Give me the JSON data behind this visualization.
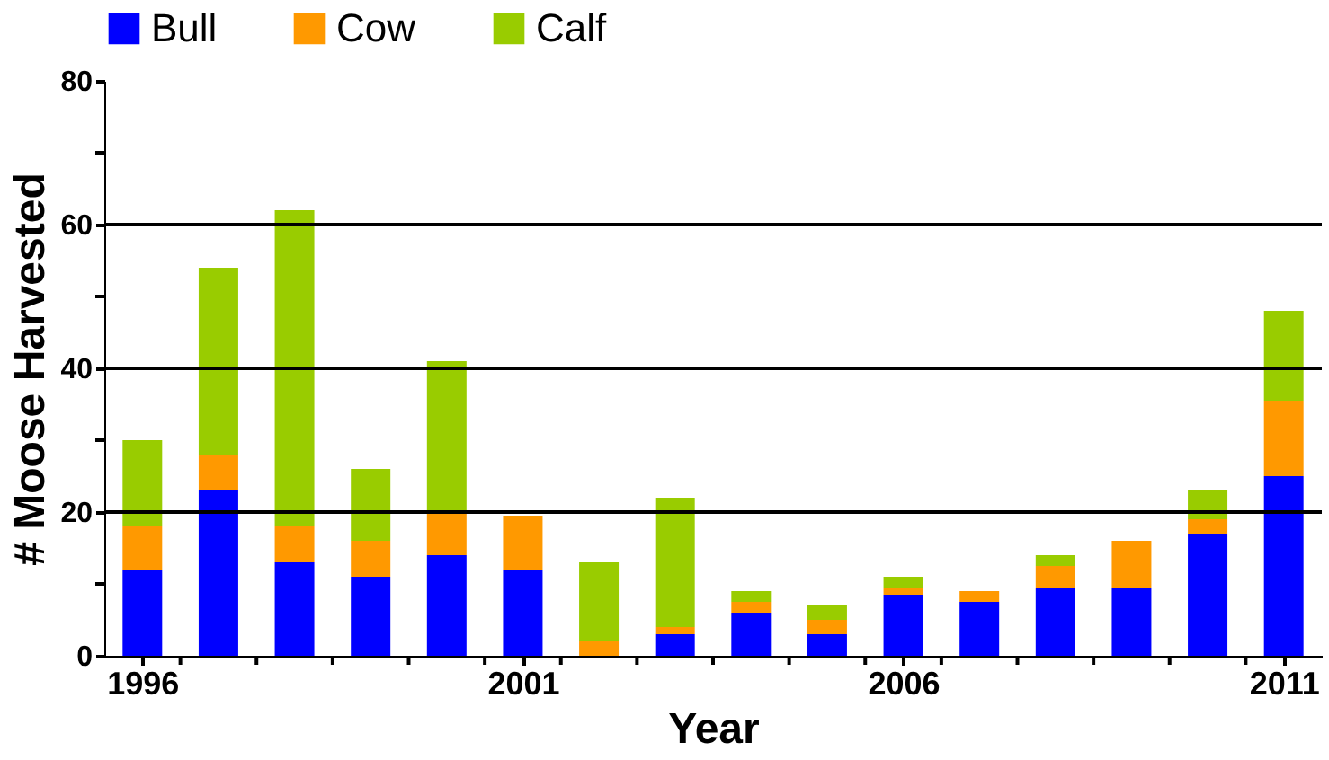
{
  "chart_data": {
    "type": "bar",
    "stacked": true,
    "xlabel": "Year",
    "ylabel": "# Moose Harvested",
    "x": [
      1996,
      1997,
      1998,
      1999,
      2000,
      2001,
      2002,
      2003,
      2004,
      2005,
      2006,
      2007,
      2008,
      2009,
      2010,
      2011
    ],
    "series": [
      {
        "name": "Bull",
        "color": "#0000ff",
        "values": [
          12,
          23,
          13,
          11,
          14,
          12,
          0,
          3,
          6,
          3,
          8.5,
          7.5,
          9.5,
          9.5,
          17,
          25
        ]
      },
      {
        "name": "Cow",
        "color": "#ff9900",
        "values": [
          6,
          5,
          5,
          5,
          6,
          7.5,
          2,
          1,
          1.5,
          2,
          1,
          1.5,
          3,
          6.5,
          2,
          10.5
        ]
      },
      {
        "name": "Calf",
        "color": "#99cc00",
        "values": [
          12,
          26,
          44,
          10,
          21,
          0,
          11,
          18,
          1.5,
          2,
          1.5,
          0,
          1.5,
          0,
          4,
          12.5
        ]
      }
    ],
    "xlim": [
      1995.5,
      2011.5
    ],
    "xticks": [
      1996,
      {
        "value": 1996.5,
        "label": null
      },
      {
        "value": 1997.5,
        "label": null
      },
      {
        "value": 1998.5,
        "label": null
      },
      {
        "value": 1999.5,
        "label": null
      },
      {
        "value": 2000.5,
        "label": null
      },
      2001,
      {
        "value": 2001.5,
        "label": null
      },
      {
        "value": 2002.5,
        "label": null
      },
      {
        "value": 2003.5,
        "label": null
      },
      {
        "value": 2004.5,
        "label": null
      },
      {
        "value": 2005.5,
        "label": null
      },
      2006,
      {
        "value": 2006.5,
        "label": null
      },
      {
        "value": 2007.5,
        "label": null
      },
      {
        "value": 2008.5,
        "label": null
      },
      {
        "value": 2009.5,
        "label": null
      },
      {
        "value": 2010.5,
        "label": null
      },
      2011
    ],
    "ylim": [
      0,
      80
    ],
    "yticks": [
      0,
      {
        "value": 10,
        "label": null
      },
      20,
      {
        "value": 30,
        "label": null
      },
      40,
      {
        "value": 50,
        "label": null
      },
      60,
      {
        "value": 70,
        "label": null
      },
      80
    ],
    "grid": "y",
    "legend": "top"
  }
}
